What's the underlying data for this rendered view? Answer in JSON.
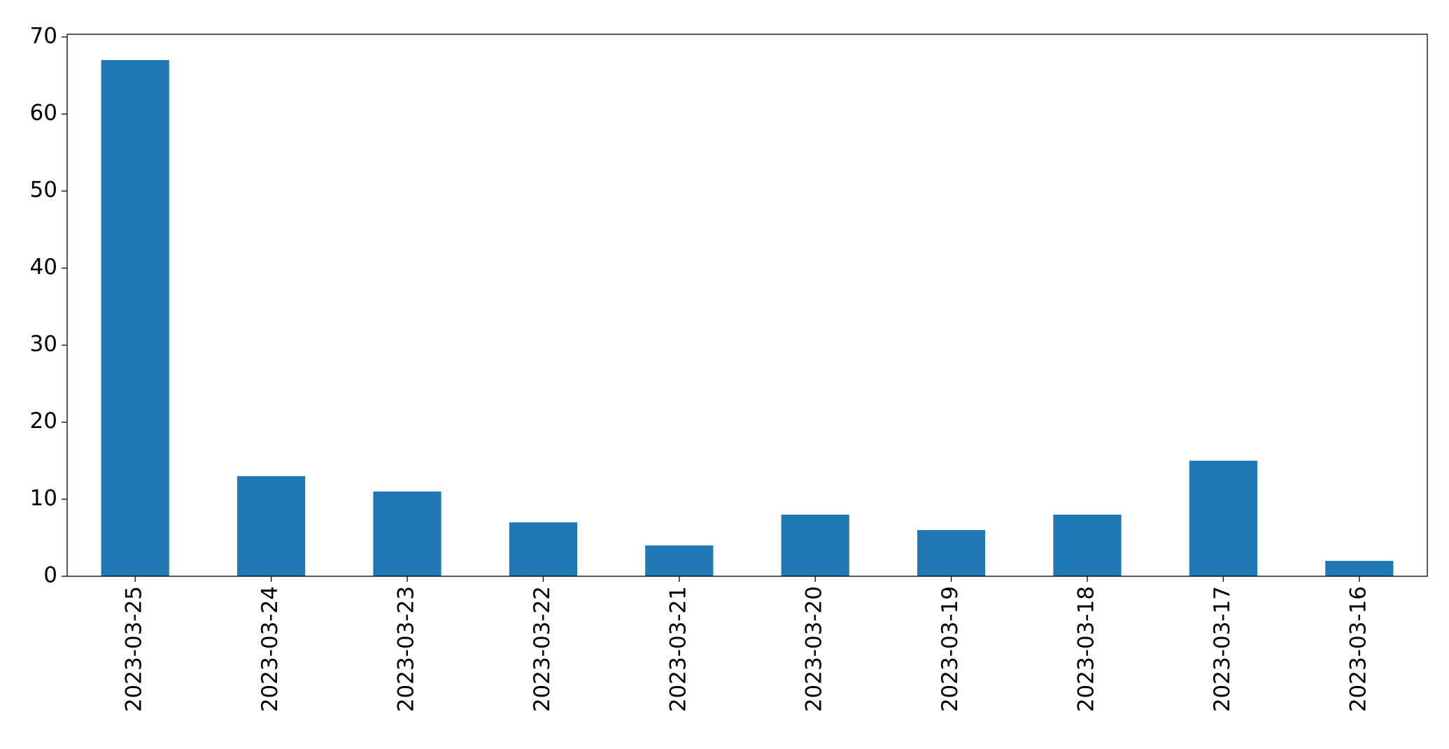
{
  "chart_data": {
    "type": "bar",
    "categories": [
      "2023-03-25",
      "2023-03-24",
      "2023-03-23",
      "2023-03-22",
      "2023-03-21",
      "2023-03-20",
      "2023-03-19",
      "2023-03-18",
      "2023-03-17",
      "2023-03-16"
    ],
    "values": [
      67,
      13,
      11,
      7,
      4,
      8,
      6,
      8,
      15,
      2
    ],
    "color": "#1f77b4",
    "ylim": [
      0,
      70.35
    ],
    "yticks": [
      0,
      10,
      20,
      30,
      40,
      50,
      60,
      70
    ],
    "grid": false
  }
}
